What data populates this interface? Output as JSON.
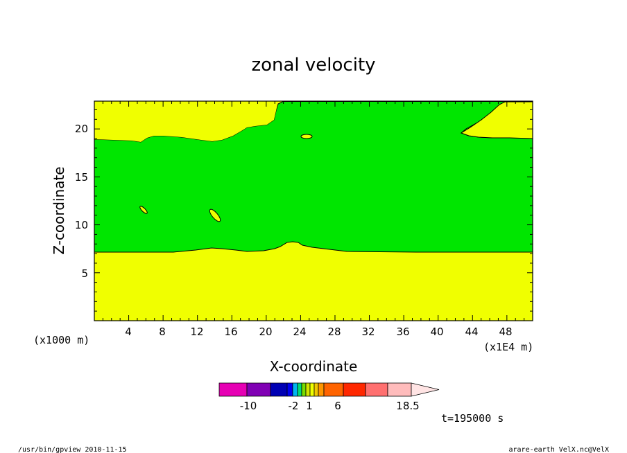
{
  "chart_data": {
    "type": "contour",
    "title": "zonal velocity",
    "xlabel": "X-coordinate",
    "ylabel": "Z-coordinate",
    "x_unit_left": "(x1000 m)",
    "x_unit_right": "(x1E4 m)",
    "xlim": [
      0,
      51
    ],
    "ylim": [
      0,
      22.9
    ],
    "x_ticks": [
      "4",
      "8",
      "12",
      "16",
      "20",
      "24",
      "28",
      "32",
      "36",
      "40",
      "44",
      "48"
    ],
    "y_ticks": [
      "5",
      "10",
      "15",
      "20"
    ],
    "regions": [
      {
        "level": "yellow",
        "color": "#f0ff00",
        "description": "background"
      },
      {
        "level": "green",
        "color": "#00e600",
        "description": "band between z~7 and z~19"
      }
    ],
    "colorbar": {
      "colors": [
        "#e600b4",
        "#8000b4",
        "#0000b4",
        "#0000f0",
        "#00b4f0",
        "#00dc78",
        "#78dc00",
        "#d2e600",
        "#f0ff00",
        "#f0c800",
        "#ff9600",
        "#ff6400",
        "#ff2800",
        "#ff7070",
        "#ffbcbc",
        "#ffe4e4"
      ],
      "tick_labels": [
        "-10",
        "-2",
        "1",
        "6",
        "18.5"
      ]
    },
    "time_label": "t=195000 s"
  },
  "footer": {
    "left": "/usr/bin/gpview  2010-11-15",
    "right": "arare-earth_VelX.nc@VelX"
  }
}
